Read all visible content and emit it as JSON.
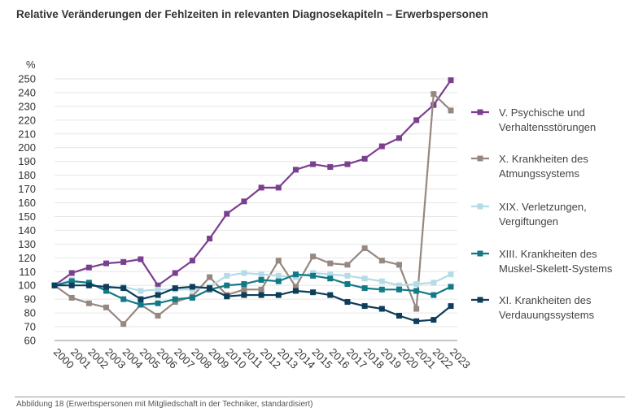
{
  "title": "Relative Veränderungen der Fehlzeiten in relevanten Diagnosekapiteln – Erwerbspersonen",
  "caption": "Abbildung 18 (Erwerbspersonen mit Mitgliedschaft in der Techniker, standardisiert)",
  "chart_data": {
    "type": "line",
    "title": "Relative Veränderungen der Fehlzeiten in relevanten Diagnosekapiteln – Erwerbspersonen",
    "ylabel": "%",
    "ylim": [
      60,
      250
    ],
    "yticks": [
      60,
      70,
      80,
      90,
      100,
      110,
      120,
      130,
      140,
      150,
      160,
      170,
      180,
      190,
      200,
      210,
      220,
      230,
      240,
      250
    ],
    "categories": [
      "2000",
      "2001",
      "2002",
      "2003",
      "2004",
      "2005",
      "2006",
      "2007",
      "2008",
      "2009",
      "2010",
      "2011",
      "2012",
      "2013",
      "2014",
      "2015",
      "2016",
      "2017",
      "2018",
      "2019",
      "2020",
      "2021",
      "2022",
      "2023"
    ],
    "grid": true,
    "legend_position": "right",
    "series": [
      {
        "name": "V. Psychische und Verhaltensstörungen",
        "legend_lines": [
          "V. Psychische und",
          "Verhaltensstörungen"
        ],
        "color": "#7b3f8f",
        "values": [
          100,
          109,
          113,
          116,
          117,
          119,
          100,
          109,
          118,
          134,
          152,
          161,
          171,
          171,
          184,
          188,
          186,
          188,
          192,
          201,
          207,
          220,
          231,
          249
        ]
      },
      {
        "name": "X. Krankheiten des Atmungssystems",
        "legend_lines": [
          "X. Krankheiten des",
          "Atmungssystems"
        ],
        "color": "#968880",
        "values": [
          100,
          91,
          87,
          84,
          72,
          86,
          78,
          88,
          92,
          106,
          93,
          97,
          97,
          118,
          99,
          121,
          116,
          115,
          127,
          118,
          115,
          83,
          239,
          227
        ]
      },
      {
        "name": "XIX. Verletzungen, Vergiftungen",
        "legend_lines": [
          "XIX. Verletzungen,",
          "Vergiftungen"
        ],
        "color": "#b5dbe6",
        "values": [
          100,
          104,
          101,
          98,
          99,
          96,
          97,
          97,
          97,
          99,
          107,
          109,
          108,
          107,
          106,
          109,
          108,
          107,
          105,
          103,
          100,
          101,
          102,
          108
        ]
      },
      {
        "name": "XIII. Krankheiten des Muskel-Skelett-Systems",
        "legend_lines": [
          "XIII. Krankheiten des",
          "Muskel-Skelett-Systems"
        ],
        "color": "#127a86",
        "values": [
          100,
          103,
          102,
          96,
          90,
          86,
          87,
          90,
          91,
          97,
          100,
          101,
          104,
          103,
          108,
          107,
          105,
          101,
          98,
          97,
          97,
          96,
          93,
          99
        ]
      },
      {
        "name": "XI. Krankheiten des Verdauungssystems",
        "legend_lines": [
          "XI. Krankheiten des",
          "Verdauungssystems"
        ],
        "color": "#0e3d5a",
        "values": [
          100,
          100,
          100,
          99,
          98,
          90,
          93,
          98,
          99,
          98,
          92,
          93,
          93,
          93,
          96,
          95,
          93,
          88,
          85,
          83,
          78,
          74,
          75,
          85
        ]
      }
    ]
  }
}
